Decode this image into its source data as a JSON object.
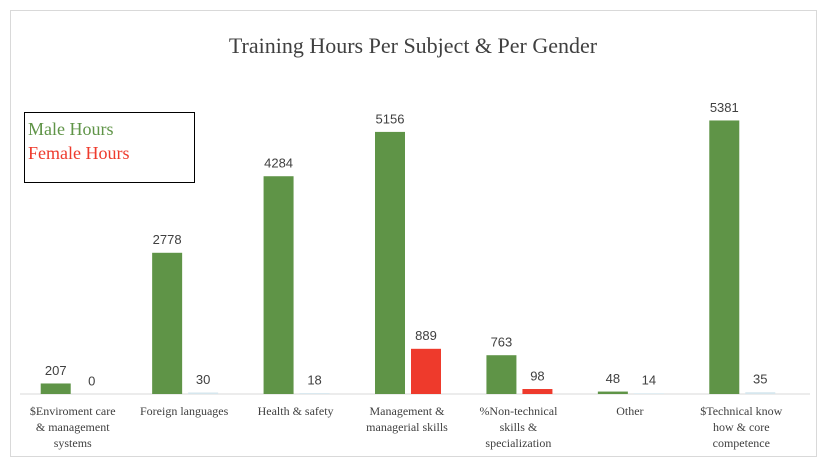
{
  "chart_data": {
    "type": "bar",
    "title": "Training Hours Per Subject & Per Gender",
    "categories": [
      "$Enviroment care & management systems",
      "Foreign languages",
      "Health & safety",
      "Management & managerial skills",
      "%Non-technical skills & specialization",
      "Other",
      "$Technical know how & core competence"
    ],
    "series": [
      {
        "name": "Male Hours",
        "color": "#5f9447",
        "values": [
          207,
          2778,
          4284,
          5156,
          763,
          48,
          5381
        ]
      },
      {
        "name": "Female Hours",
        "color": "#ee3a2c",
        "point_colors": [
          "#d6e7ee",
          "#d6e7ee",
          "#d6e7ee",
          "#ee3a2c",
          "#ee3a2c",
          "#d6e7ee",
          "#d6e7ee"
        ],
        "values": [
          0,
          30,
          18,
          889,
          98,
          14,
          35
        ]
      }
    ],
    "ylim": [
      0,
      6000
    ],
    "legend": "upper left"
  }
}
